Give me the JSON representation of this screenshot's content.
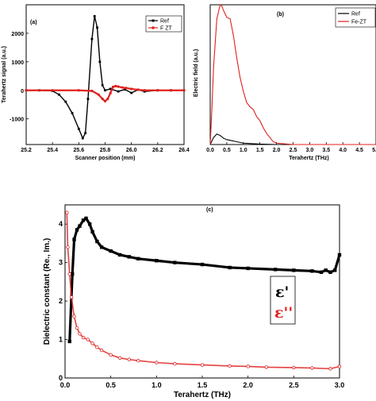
{
  "chart_data": [
    {
      "type": "line",
      "panel": "(a)",
      "xlabel": "Scanner position (mm)",
      "ylabel": "Terahertz signal (a.u.)",
      "xlim": [
        25.2,
        26.4
      ],
      "ylim": [
        -1900,
        3000
      ],
      "xticks": [
        "25.2",
        "25.4",
        "25.6",
        "25.8",
        "26.0",
        "26.2",
        "26.4"
      ],
      "yticks": [
        "-1000",
        "0",
        "1000",
        "2000"
      ],
      "ytick_values": [
        -1000,
        0,
        1000,
        2000
      ],
      "legend": "top-right",
      "series": [
        {
          "name": "Ref",
          "color": "#000000",
          "x": [
            25.2,
            25.3,
            25.4,
            25.45,
            25.5,
            25.55,
            25.6,
            25.63,
            25.65,
            25.67,
            25.7,
            25.72,
            25.74,
            25.76,
            25.78,
            25.8,
            25.84,
            25.9,
            25.95,
            26.0,
            26.05,
            26.1,
            26.2,
            26.3,
            26.4
          ],
          "values": [
            0,
            0,
            -20,
            -150,
            -400,
            -800,
            -1350,
            -1680,
            -1500,
            -300,
            1800,
            2600,
            2200,
            1000,
            180,
            0,
            50,
            -40,
            30,
            -90,
            20,
            -40,
            0,
            0,
            0
          ]
        },
        {
          "name": "F ZT",
          "color": "#e0201e",
          "x": [
            25.2,
            25.4,
            25.6,
            25.7,
            25.75,
            25.78,
            25.8,
            25.82,
            25.84,
            25.86,
            25.88,
            25.9,
            25.93,
            25.96,
            26.0,
            26.05,
            26.1,
            26.2,
            26.3,
            26.4
          ],
          "values": [
            0,
            0,
            0,
            -20,
            -150,
            -300,
            -380,
            -300,
            -100,
            120,
            150,
            130,
            100,
            80,
            50,
            20,
            0,
            0,
            0,
            0
          ]
        }
      ]
    },
    {
      "type": "line",
      "panel": "(b)",
      "xlabel": "Terahertz (THz)",
      "ylabel": "Electric field (a.u.)",
      "xlim": [
        0,
        5
      ],
      "ylim": [
        0,
        1
      ],
      "xticks": [
        "0.0",
        "0.5",
        "1.0",
        "1.5",
        "2.0",
        "2.5",
        "3.0",
        "3.5",
        "4.0",
        "4.5",
        "5.0"
      ],
      "legend": "top-right",
      "series": [
        {
          "name": "Ref",
          "color": "#000000",
          "x": [
            0,
            0.1,
            0.2,
            0.3,
            0.4,
            0.5,
            0.6,
            0.8,
            1.0,
            1.5,
            2.0,
            5.0
          ],
          "values": [
            0,
            0.05,
            0.075,
            0.065,
            0.045,
            0.035,
            0.03,
            0.02,
            0.01,
            0.003,
            0,
            0
          ]
        },
        {
          "name": "Fe-ZT",
          "color": "#e0201e",
          "x": [
            0,
            0.05,
            0.1,
            0.2,
            0.3,
            0.35,
            0.4,
            0.5,
            0.6,
            0.7,
            0.8,
            0.9,
            1.0,
            1.1,
            1.2,
            1.3,
            1.4,
            1.5,
            1.6,
            1.7,
            1.8,
            1.9,
            2.0,
            2.5,
            5.0
          ],
          "values": [
            0,
            0.25,
            0.55,
            0.9,
            1.0,
            0.99,
            0.96,
            0.91,
            0.9,
            0.78,
            0.62,
            0.48,
            0.38,
            0.3,
            0.27,
            0.25,
            0.2,
            0.17,
            0.12,
            0.08,
            0.05,
            0.02,
            0.01,
            0,
            0
          ]
        }
      ]
    },
    {
      "type": "scatter",
      "panel": "(c)",
      "xlabel": "Terahertz (THz)",
      "ylabel": "Dielectric constant (Re., Im.)",
      "xlim": [
        0,
        3
      ],
      "ylim": [
        0,
        4.5
      ],
      "xticks": [
        "0.0",
        "0.5",
        "1.0",
        "1.5",
        "2.0",
        "2.5",
        "3.0"
      ],
      "xtick_values": [
        0,
        0.5,
        1,
        1.5,
        2,
        2.5,
        3
      ],
      "yticks": [
        "0",
        "1",
        "2",
        "3",
        "4"
      ],
      "ytick_values": [
        0,
        1,
        2,
        3,
        4
      ],
      "legend": "right",
      "series": [
        {
          "name": "ε'",
          "color": "#000000",
          "x": [
            0.05,
            0.08,
            0.1,
            0.13,
            0.16,
            0.2,
            0.23,
            0.27,
            0.3,
            0.35,
            0.4,
            0.5,
            0.6,
            0.7,
            0.8,
            1.0,
            1.2,
            1.5,
            1.8,
            2.0,
            2.3,
            2.5,
            2.7,
            2.8,
            2.85,
            2.9,
            2.95,
            3.0
          ],
          "values": [
            0.95,
            2.7,
            3.6,
            3.85,
            3.95,
            4.1,
            4.15,
            4.0,
            3.8,
            3.55,
            3.4,
            3.3,
            3.2,
            3.15,
            3.1,
            3.05,
            3.0,
            2.95,
            2.87,
            2.85,
            2.82,
            2.8,
            2.78,
            2.75,
            2.8,
            2.75,
            2.8,
            3.2
          ]
        },
        {
          "name": "ε''",
          "color": "#e0201e",
          "x": [
            0.02,
            0.03,
            0.05,
            0.07,
            0.1,
            0.13,
            0.16,
            0.2,
            0.25,
            0.3,
            0.35,
            0.4,
            0.5,
            0.6,
            0.7,
            0.8,
            1.0,
            1.2,
            1.5,
            1.8,
            2.0,
            2.2,
            2.5,
            2.7,
            2.9,
            3.0
          ],
          "values": [
            4.3,
            3.4,
            2.7,
            2.1,
            1.6,
            1.3,
            1.15,
            1.05,
            1.0,
            0.9,
            0.8,
            0.72,
            0.6,
            0.52,
            0.48,
            0.45,
            0.4,
            0.37,
            0.34,
            0.31,
            0.3,
            0.28,
            0.27,
            0.26,
            0.24,
            0.3
          ]
        }
      ]
    }
  ]
}
